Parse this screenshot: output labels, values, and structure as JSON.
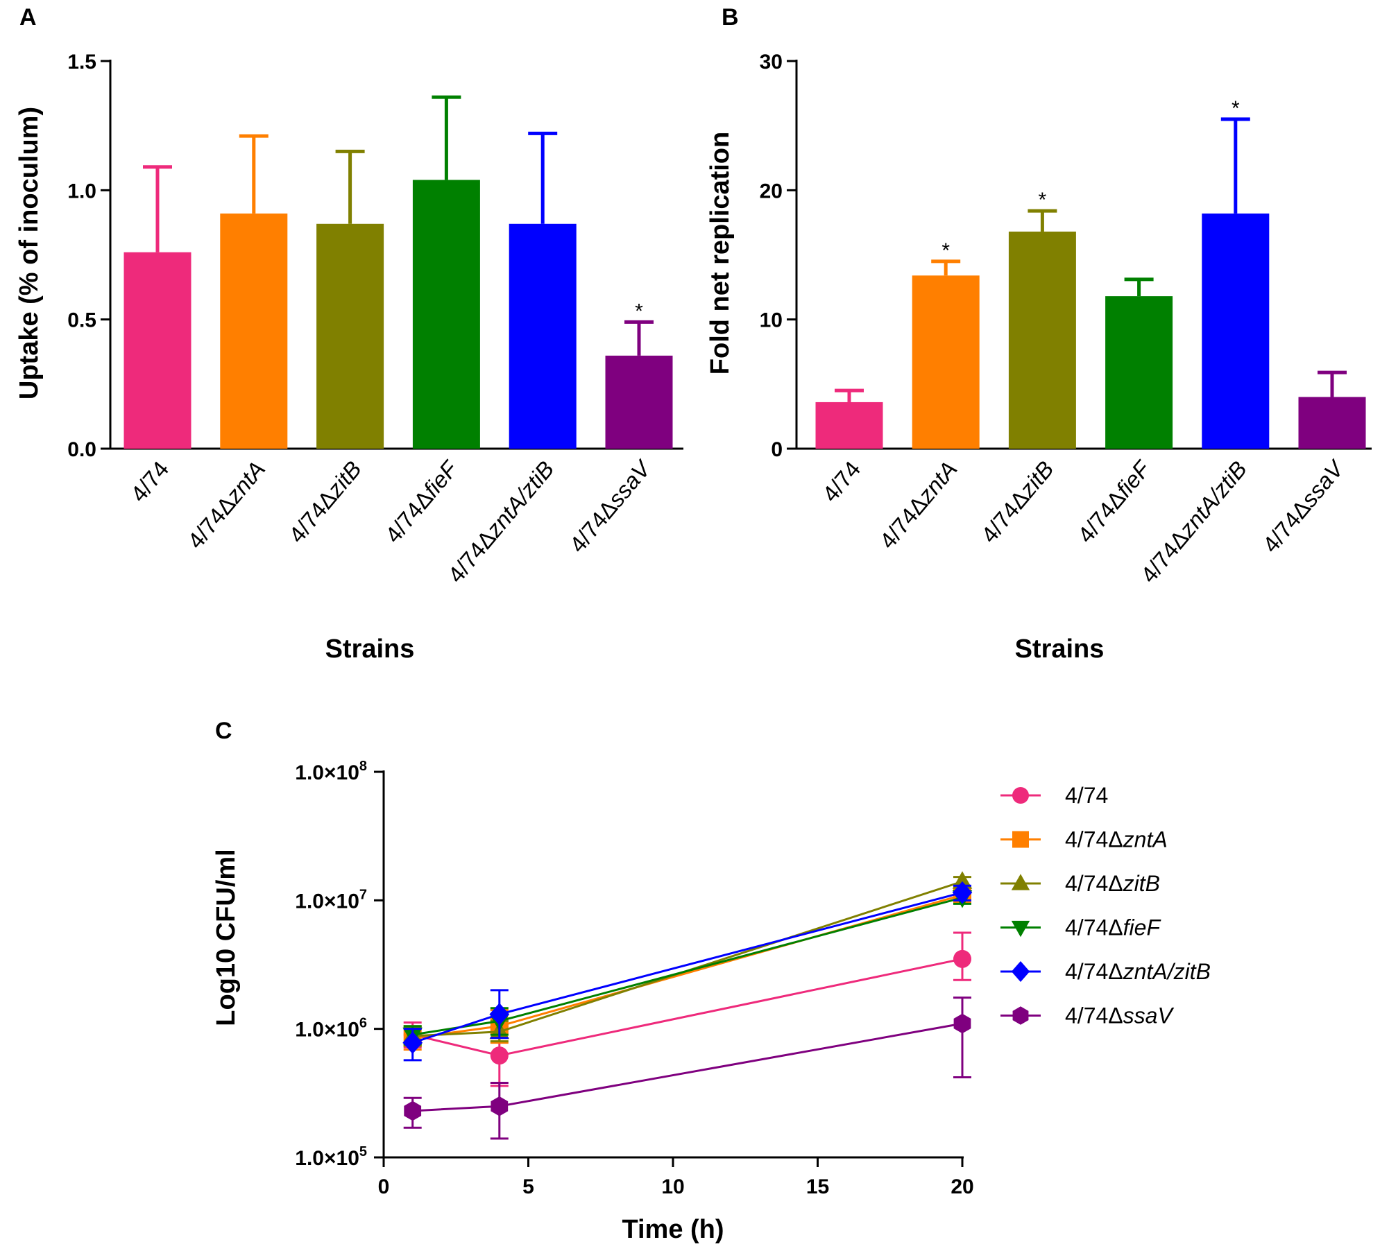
{
  "panels": {
    "A": {
      "letter": "A"
    },
    "B": {
      "letter": "B"
    },
    "C": {
      "letter": "C"
    }
  },
  "chart_data": [
    {
      "id": "A",
      "type": "bar",
      "title": "",
      "xlabel": "Strains",
      "ylabel": "Uptake (% of inoculum)",
      "ylim": [
        0,
        1.5
      ],
      "yticks": [
        "0.0",
        "0.5",
        "1.0",
        "1.5"
      ],
      "ytick_values": [
        0,
        0.5,
        1.0,
        1.5
      ],
      "categories": [
        {
          "prefix": "4/74",
          "gene": ""
        },
        {
          "prefix": "4/74Δ",
          "gene": "zntA"
        },
        {
          "prefix": "4/74Δ",
          "gene": "zitB"
        },
        {
          "prefix": "4/74Δ",
          "gene": "fieF"
        },
        {
          "prefix": "4/74Δ",
          "gene": "zntA/ztiB"
        },
        {
          "prefix": "4/74Δ",
          "gene": "ssaV"
        }
      ],
      "values": [
        0.76,
        0.91,
        0.87,
        1.04,
        0.87,
        0.36
      ],
      "errors": [
        0.33,
        0.3,
        0.28,
        0.32,
        0.35,
        0.13
      ],
      "significance": [
        "",
        "",
        "",
        "",
        "",
        "*"
      ],
      "colors": [
        "#ee2a7b",
        "#ff7f00",
        "#808000",
        "#008000",
        "#0000ff",
        "#7f007f"
      ]
    },
    {
      "id": "B",
      "type": "bar",
      "title": "",
      "xlabel": "Strains",
      "ylabel": "Fold net replication",
      "ylim": [
        0,
        30
      ],
      "yticks": [
        "0",
        "10",
        "20",
        "30"
      ],
      "ytick_values": [
        0,
        10,
        20,
        30
      ],
      "categories": [
        {
          "prefix": "4/74",
          "gene": ""
        },
        {
          "prefix": "4/74Δ",
          "gene": "zntA"
        },
        {
          "prefix": "4/74Δ",
          "gene": "zitB"
        },
        {
          "prefix": "4/74Δ",
          "gene": "fieF"
        },
        {
          "prefix": "4/74Δ",
          "gene": "zntA/ztiB"
        },
        {
          "prefix": "4/74Δ",
          "gene": "ssaV"
        }
      ],
      "values": [
        3.6,
        13.4,
        16.8,
        11.8,
        18.2,
        4.0
      ],
      "errors": [
        0.9,
        1.1,
        1.6,
        1.3,
        7.3,
        1.9
      ],
      "significance": [
        "",
        "*",
        "*",
        "",
        "*",
        ""
      ],
      "colors": [
        "#ee2a7b",
        "#ff7f00",
        "#808000",
        "#008000",
        "#0000ff",
        "#7f007f"
      ]
    },
    {
      "id": "C",
      "type": "line",
      "title": "",
      "xlabel": "Time (h)",
      "ylabel": "Log10 CFU/ml",
      "xlim": [
        0,
        20
      ],
      "xticks": [
        "0",
        "5",
        "10",
        "15",
        "20"
      ],
      "xtick_values": [
        0,
        5,
        10,
        15,
        20
      ],
      "yscale": "log",
      "ylim": [
        100000,
        100000000
      ],
      "yticks": [
        {
          "base": "1.0×10",
          "exp": "5"
        },
        {
          "base": "1.0×10",
          "exp": "6"
        },
        {
          "base": "1.0×10",
          "exp": "7"
        },
        {
          "base": "1.0×10",
          "exp": "8"
        }
      ],
      "ytick_exponents": [
        5,
        6,
        7,
        8
      ],
      "legend_position": "right",
      "series": [
        {
          "prefix": "4/74",
          "gene": "",
          "color": "#ee2a7b",
          "marker": "circle",
          "x": [
            1,
            4,
            20
          ],
          "y": [
            900000,
            620000,
            3500000
          ],
          "err_low": [
            720000,
            360000,
            2400000
          ],
          "err_high": [
            1120000,
            1050000,
            5600000
          ]
        },
        {
          "prefix": "4/74Δ",
          "gene": "zntA",
          "color": "#ff7f00",
          "marker": "square",
          "x": [
            1,
            4,
            20
          ],
          "y": [
            850000,
            1050000,
            11000000
          ],
          "err_low": [
            690000,
            780000,
            9800000
          ],
          "err_high": [
            1050000,
            1400000,
            12300000
          ]
        },
        {
          "prefix": "4/74Δ",
          "gene": "zitB",
          "color": "#808000",
          "marker": "triangle-up",
          "x": [
            1,
            4,
            20
          ],
          "y": [
            880000,
            950000,
            14000000
          ],
          "err_low": [
            740000,
            800000,
            12800000
          ],
          "err_high": [
            1020000,
            1150000,
            15200000
          ]
        },
        {
          "prefix": "4/74Δ",
          "gene": "fieF",
          "color": "#008000",
          "marker": "triangle-down",
          "x": [
            1,
            4,
            20
          ],
          "y": [
            900000,
            1150000,
            10500000
          ],
          "err_low": [
            760000,
            900000,
            9400000
          ],
          "err_high": [
            1050000,
            1450000,
            11800000
          ]
        },
        {
          "prefix": "4/74Δ",
          "gene": "zntA/zitB",
          "color": "#0000ff",
          "marker": "diamond",
          "x": [
            1,
            4,
            20
          ],
          "y": [
            780000,
            1300000,
            11500000
          ],
          "err_low": [
            570000,
            850000,
            10000000
          ],
          "err_high": [
            1000000,
            2000000,
            13000000
          ]
        },
        {
          "prefix": "4/74Δ",
          "gene": "ssaV",
          "color": "#7f007f",
          "marker": "hexagon",
          "x": [
            1,
            4,
            20
          ],
          "y": [
            230000,
            250000,
            1100000
          ],
          "err_low": [
            170000,
            140000,
            420000
          ],
          "err_high": [
            290000,
            380000,
            1750000
          ]
        }
      ]
    }
  ]
}
